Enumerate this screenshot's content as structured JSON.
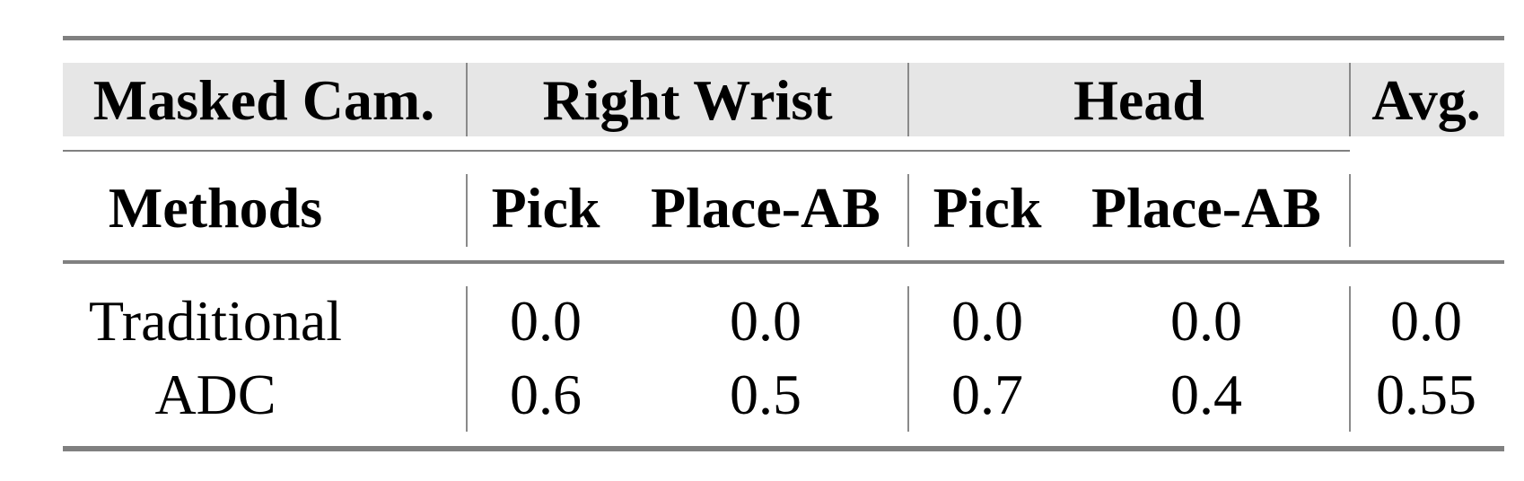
{
  "table": {
    "header_row1": {
      "masked_cam": "Masked Cam.",
      "group1": "Right Wrist",
      "group2": "Head",
      "avg": "Avg."
    },
    "header_row2": {
      "methods": "Methods",
      "cols": [
        "Pick",
        "Place-AB",
        "Pick",
        "Place-AB"
      ]
    },
    "rows": [
      {
        "method": "Traditional",
        "values": [
          "0.0",
          "0.0",
          "0.0",
          "0.0"
        ],
        "avg": "0.0"
      },
      {
        "method": "ADC",
        "values": [
          "0.6",
          "0.5",
          "0.7",
          "0.4"
        ],
        "avg": "0.55"
      }
    ],
    "colors": {
      "header_band": "#e6e6e6",
      "rules": "#808080"
    }
  }
}
